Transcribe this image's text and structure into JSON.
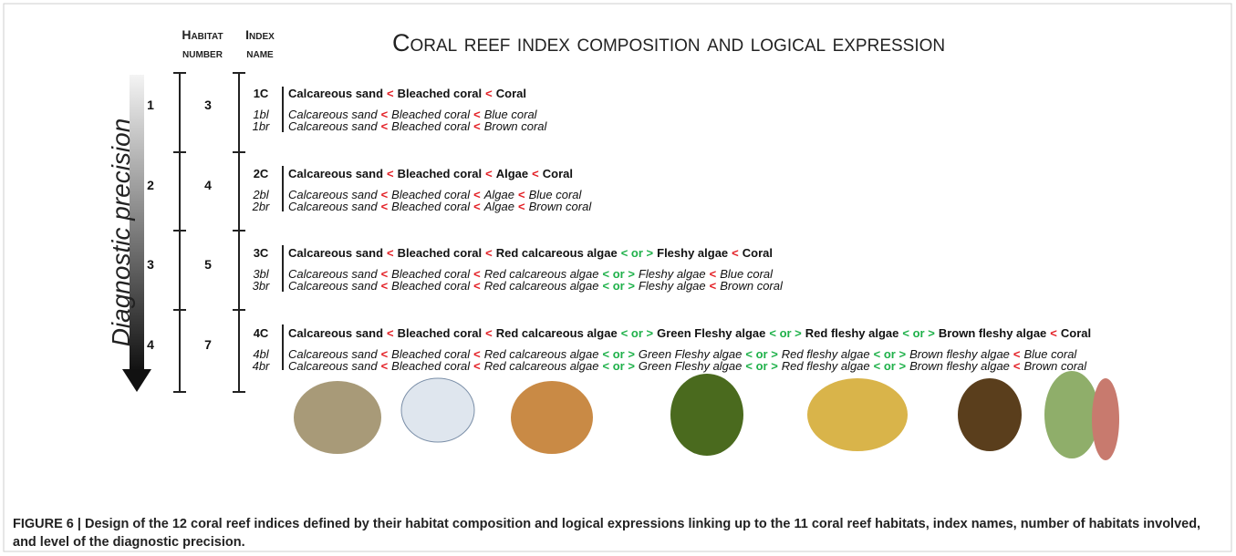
{
  "title": "Coral reef index composition and logical expression",
  "columns": {
    "habitat_number": [
      "Habitat",
      "number"
    ],
    "index_name": [
      "Index",
      "name"
    ]
  },
  "axis_label": "Diagnostic precision",
  "groups": [
    {
      "level": 1,
      "habitats": 3,
      "indices": [
        {
          "name": "1C",
          "parts": [
            "Calcareous sand",
            {
              "op": "<",
              "color": "#e31e24"
            },
            "Bleached coral",
            {
              "op": "<",
              "color": "#e31e24"
            },
            "Coral"
          ]
        },
        {
          "name": "1bl",
          "parts": [
            "Calcareous sand",
            {
              "op": "<",
              "color": "#e31e24"
            },
            "Bleached coral",
            {
              "op": "<",
              "color": "#e31e24"
            },
            "Blue coral"
          ]
        },
        {
          "name": "1br",
          "parts": [
            "Calcareous sand",
            {
              "op": "<",
              "color": "#e31e24"
            },
            "Bleached coral",
            {
              "op": "<",
              "color": "#e31e24"
            },
            "Brown coral"
          ]
        }
      ]
    },
    {
      "level": 2,
      "habitats": 4,
      "indices": [
        {
          "name": "2C",
          "parts": [
            "Calcareous sand",
            {
              "op": "<",
              "color": "#e31e24"
            },
            "Bleached coral",
            {
              "op": "<",
              "color": "#e31e24"
            },
            "Algae",
            {
              "op": "<",
              "color": "#e31e24"
            },
            "Coral"
          ]
        },
        {
          "name": "2bl",
          "parts": [
            "Calcareous sand",
            {
              "op": "<",
              "color": "#e31e24"
            },
            "Bleached coral",
            {
              "op": "<",
              "color": "#e31e24"
            },
            "Algae",
            {
              "op": "<",
              "color": "#e31e24"
            },
            "Blue coral"
          ]
        },
        {
          "name": "2br",
          "parts": [
            "Calcareous sand",
            {
              "op": "<",
              "color": "#e31e24"
            },
            "Bleached coral",
            {
              "op": "<",
              "color": "#e31e24"
            },
            "Algae",
            {
              "op": "<",
              "color": "#e31e24"
            },
            "Brown coral"
          ]
        }
      ]
    },
    {
      "level": 3,
      "habitats": 5,
      "indices": [
        {
          "name": "3C",
          "parts": [
            "Calcareous sand",
            {
              "op": "<",
              "color": "#e31e24"
            },
            "Bleached coral",
            {
              "op": "<",
              "color": "#e31e24"
            },
            "Red calcareous algae",
            {
              "op": "< or >",
              "color": "#1fb14a"
            },
            "Fleshy algae",
            {
              "op": "<",
              "color": "#e31e24"
            },
            "Coral"
          ]
        },
        {
          "name": "3bl",
          "parts": [
            "Calcareous sand",
            {
              "op": "<",
              "color": "#e31e24"
            },
            "Bleached coral",
            {
              "op": "<",
              "color": "#e31e24"
            },
            "Red calcareous algae",
            {
              "op": "< or >",
              "color": "#1fb14a"
            },
            "Fleshy algae",
            {
              "op": "<",
              "color": "#e31e24"
            },
            "Blue coral"
          ]
        },
        {
          "name": "3br",
          "parts": [
            "Calcareous sand",
            {
              "op": "<",
              "color": "#e31e24"
            },
            "Bleached coral",
            {
              "op": "<",
              "color": "#e31e24"
            },
            "Red calcareous algae",
            {
              "op": "< or >",
              "color": "#1fb14a"
            },
            "Fleshy algae",
            {
              "op": "<",
              "color": "#e31e24"
            },
            "Brown coral"
          ]
        }
      ]
    },
    {
      "level": 4,
      "habitats": 7,
      "indices": [
        {
          "name": "4C",
          "parts": [
            "Calcareous sand",
            {
              "op": "<",
              "color": "#e31e24"
            },
            "Bleached coral",
            {
              "op": "<",
              "color": "#e31e24"
            },
            "Red calcareous algae",
            {
              "op": "< or >",
              "color": "#1fb14a"
            },
            "Green Fleshy algae",
            {
              "op": "< or >",
              "color": "#1fb14a"
            },
            "Red fleshy algae",
            {
              "op": "< or >",
              "color": "#1fb14a"
            },
            "Brown fleshy algae",
            {
              "op": "<",
              "color": "#e31e24"
            },
            "Coral"
          ]
        },
        {
          "name": "4bl",
          "parts": [
            "Calcareous sand",
            {
              "op": "<",
              "color": "#e31e24"
            },
            "Bleached coral",
            {
              "op": "<",
              "color": "#e31e24"
            },
            "Red calcareous algae",
            {
              "op": "< or >",
              "color": "#1fb14a"
            },
            "Green Fleshy algae",
            {
              "op": "< or >",
              "color": "#1fb14a"
            },
            "Red fleshy algae",
            {
              "op": "< or >",
              "color": "#1fb14a"
            },
            "Brown fleshy algae",
            {
              "op": "<",
              "color": "#e31e24"
            },
            "Blue coral"
          ]
        },
        {
          "name": "4br",
          "parts": [
            "Calcareous sand",
            {
              "op": "<",
              "color": "#e31e24"
            },
            "Bleached coral",
            {
              "op": "<",
              "color": "#e31e24"
            },
            "Red calcareous algae",
            {
              "op": "< or >",
              "color": "#1fb14a"
            },
            "Green Fleshy algae",
            {
              "op": "< or >",
              "color": "#1fb14a"
            },
            "Red fleshy algae",
            {
              "op": "< or >",
              "color": "#1fb14a"
            },
            "Brown fleshy algae",
            {
              "op": "<",
              "color": "#e31e24"
            },
            "Brown coral"
          ]
        }
      ]
    }
  ],
  "caption": "FIGURE 6 | Design of the 12 coral reef indices defined by their habitat composition and logical expressions linking up to the 11 coral reef habitats, index names, number of habitats involved, and level of the diagnostic precision."
}
